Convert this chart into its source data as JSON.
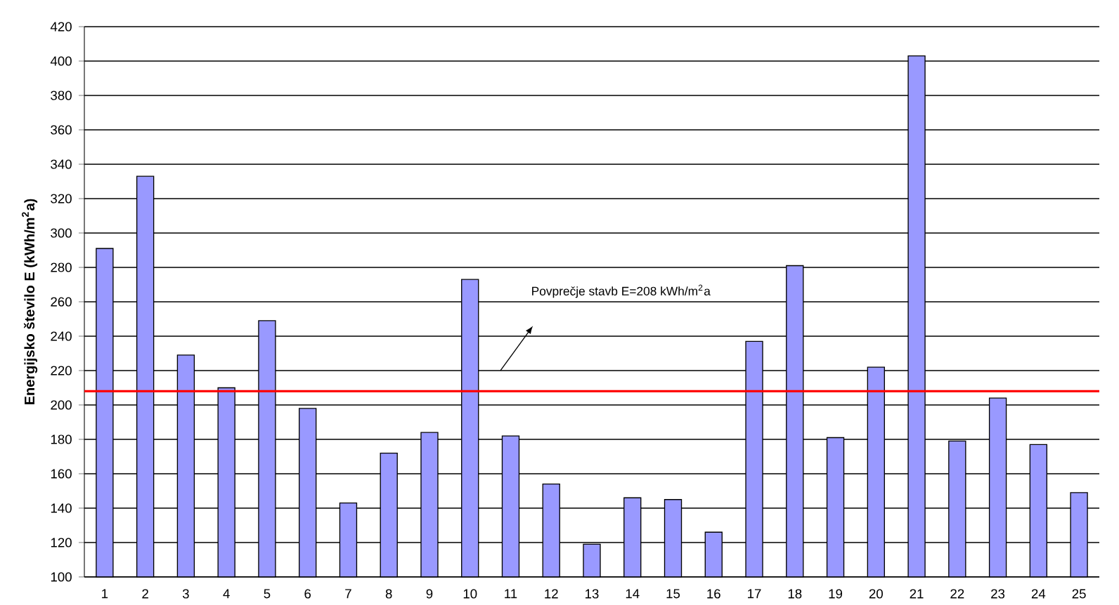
{
  "chart_data": {
    "type": "bar",
    "ylabel": "Energijsko število E (kWh/m$^{2}$a)",
    "categories": [
      "1",
      "2",
      "3",
      "4",
      "5",
      "6",
      "7",
      "8",
      "9",
      "10",
      "11",
      "12",
      "13",
      "14",
      "15",
      "16",
      "17",
      "18",
      "19",
      "20",
      "21",
      "22",
      "23",
      "24",
      "25"
    ],
    "values": [
      291,
      333,
      229,
      210,
      249,
      198,
      143,
      172,
      184,
      273,
      182,
      154,
      119,
      146,
      145,
      126,
      237,
      281,
      181,
      222,
      403,
      179,
      204,
      177,
      149
    ],
    "color": "#9999ff",
    "ylim": [
      100,
      420
    ],
    "yticks": [
      100,
      120,
      140,
      160,
      180,
      200,
      220,
      240,
      260,
      280,
      300,
      320,
      340,
      360,
      380,
      400,
      420
    ],
    "grid": "y",
    "annotations": [
      "Povprečje stavb E=208 kWh/m$^{2}$a"
    ],
    "ref_lines": [
      {
        "axis": "y",
        "value": 208,
        "color": "#ff0000"
      }
    ]
  }
}
